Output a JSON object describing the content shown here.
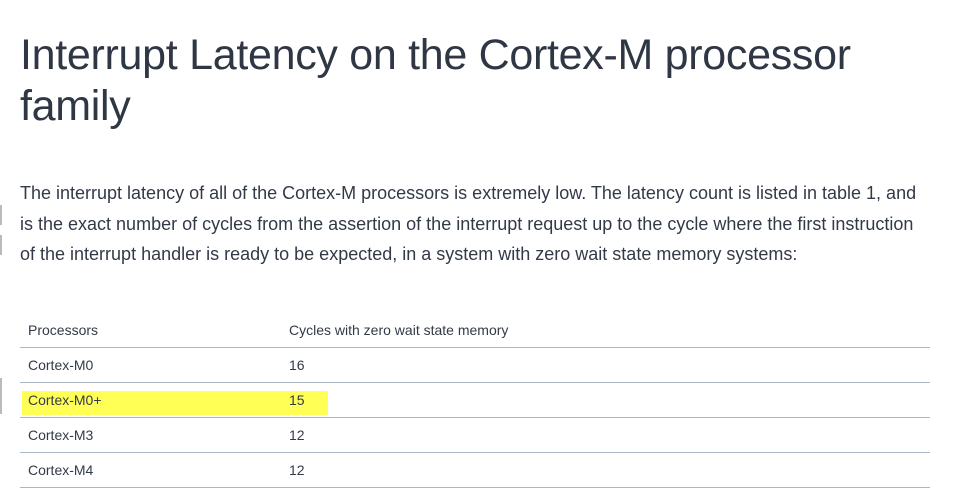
{
  "title": "Interrupt Latency on the Cortex-M processor family",
  "intro": "The interrupt latency of all of the Cortex-M processors is extremely low. The latency count is listed in table 1, and is the exact number of cycles from the assertion of the interrupt request up to the cycle where the first instruction of the interrupt handler is ready to be expected, in a system with zero wait state memory systems:",
  "table": {
    "headers": [
      "Processors",
      "Cycles with zero wait state memory"
    ],
    "rows": [
      {
        "processor": "Cortex-M0",
        "cycles": "16"
      },
      {
        "processor": "Cortex-M0+",
        "cycles": "15",
        "highlighted": true
      },
      {
        "processor": "Cortex-M3",
        "cycles": "12"
      },
      {
        "processor": "Cortex-M4",
        "cycles": "12"
      }
    ]
  },
  "highlight_color": "#ffff55"
}
